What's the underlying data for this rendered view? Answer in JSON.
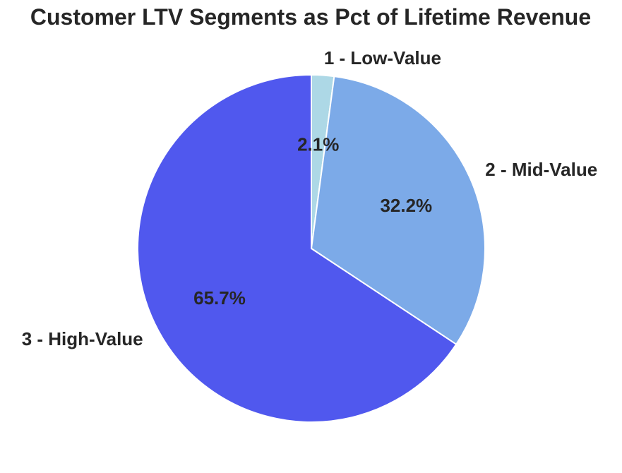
{
  "chart_data": {
    "type": "pie",
    "title": "Customer LTV Segments as Pct of Lifetime Revenue",
    "categories": [
      "1 - Low-Value",
      "2 - Mid-Value",
      "3 - High-Value"
    ],
    "values": [
      2.1,
      32.2,
      65.7
    ],
    "value_labels": [
      "2.1%",
      "32.2%",
      "65.7%"
    ],
    "colors": [
      "#add8e6",
      "#7caae8",
      "#5058ee"
    ],
    "start_angle_degrees": 90,
    "direction": "clockwise",
    "edge_color": "#ffffff",
    "legend": "none"
  }
}
